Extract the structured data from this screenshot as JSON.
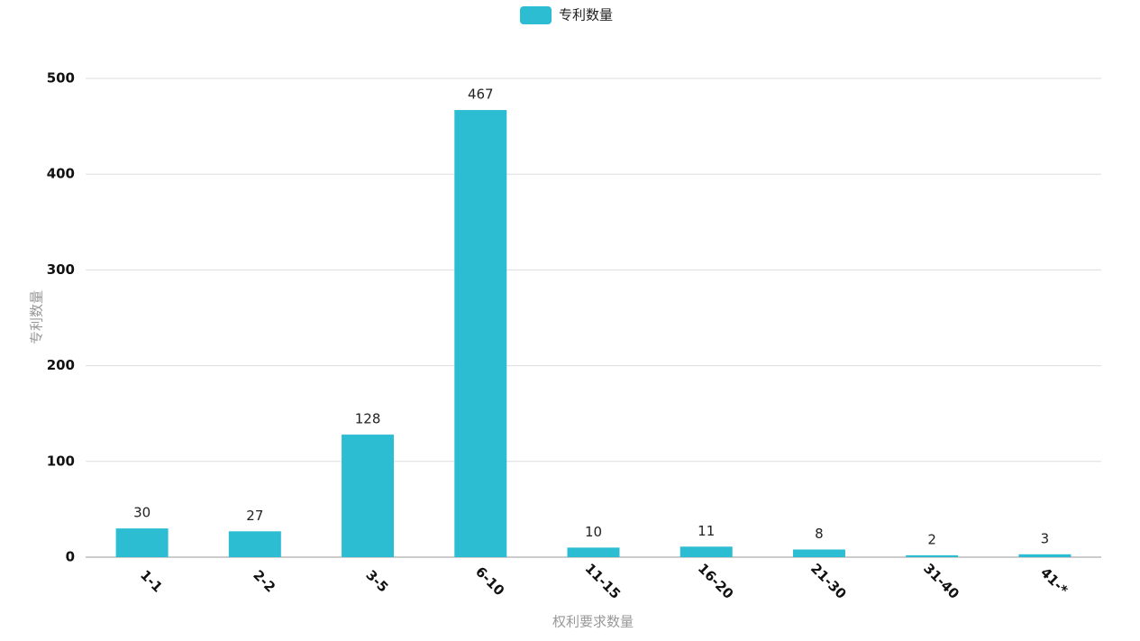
{
  "chart_data": {
    "type": "bar",
    "x_label": "权利要求数量",
    "y_label": "专利数量",
    "categories": [
      "1-1",
      "2-2",
      "3-5",
      "6-10",
      "11-15",
      "16-20",
      "21-30",
      "31-40",
      "41-*"
    ],
    "series": [
      {
        "name": "专利数量",
        "color": "#2dbdd2",
        "values": [
          30,
          27,
          128,
          467,
          10,
          11,
          8,
          2,
          3
        ]
      }
    ],
    "ylim": [
      0,
      500
    ],
    "yticks": [
      0,
      100,
      200,
      300,
      400,
      500
    ],
    "grid": true,
    "legend": "top"
  }
}
